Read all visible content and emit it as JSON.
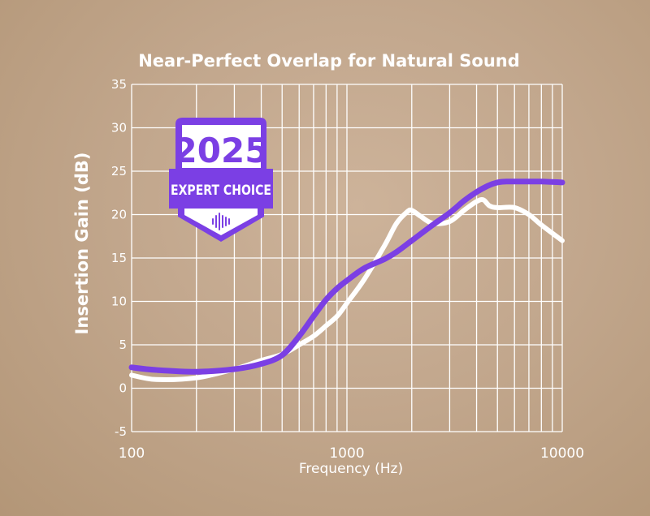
{
  "chart_data": {
    "type": "line",
    "title": "Near-Perfect Overlap for Natural Sound",
    "xlabel": "Frequency (Hz)",
    "ylabel": "Insertion Gain (dB)",
    "xscale": "log",
    "xlim": [
      100,
      10000
    ],
    "ylim": [
      -5,
      35
    ],
    "x_tick_labels": [
      "100",
      "1000",
      "10000"
    ],
    "y_tick_labels": [
      "-5",
      "0",
      "5",
      "10",
      "15",
      "20",
      "25",
      "30",
      "35"
    ],
    "grid": true,
    "series": [
      {
        "color": "#ffffff",
        "x": [
          100,
          130,
          200,
          300,
          400,
          500,
          600,
          700,
          800,
          900,
          1000,
          1200,
          1500,
          1700,
          1900,
          2000,
          2200,
          2500,
          3000,
          3500,
          4000,
          4300,
          4600,
          5000,
          6000,
          7000,
          8000,
          10000
        ],
        "y": [
          1.5,
          1.0,
          1.2,
          2.2,
          3.2,
          3.9,
          5.0,
          6.0,
          7.2,
          8.3,
          9.8,
          12.5,
          16.5,
          19.0,
          20.3,
          20.5,
          19.8,
          19.0,
          19.2,
          20.5,
          21.5,
          21.7,
          21.0,
          20.8,
          20.8,
          20.0,
          18.8,
          17.0
        ]
      },
      {
        "color": "#7b3fe4",
        "x": [
          100,
          130,
          200,
          300,
          400,
          500,
          600,
          700,
          800,
          900,
          1000,
          1200,
          1500,
          1700,
          2000,
          2500,
          3000,
          3500,
          4000,
          4500,
          5000,
          5500,
          6000,
          7000,
          8000,
          10000
        ],
        "y": [
          2.4,
          2.1,
          1.9,
          2.2,
          2.8,
          3.8,
          6.0,
          8.3,
          10.2,
          11.5,
          12.4,
          13.8,
          14.9,
          15.7,
          17.0,
          18.8,
          20.2,
          21.6,
          22.6,
          23.3,
          23.7,
          23.8,
          23.8,
          23.8,
          23.8,
          23.7
        ]
      }
    ]
  },
  "badge": {
    "year": "2025",
    "text": "EXPERT CHOICE",
    "icon": "sound-wave-icon",
    "color": "#7b3fe4"
  }
}
